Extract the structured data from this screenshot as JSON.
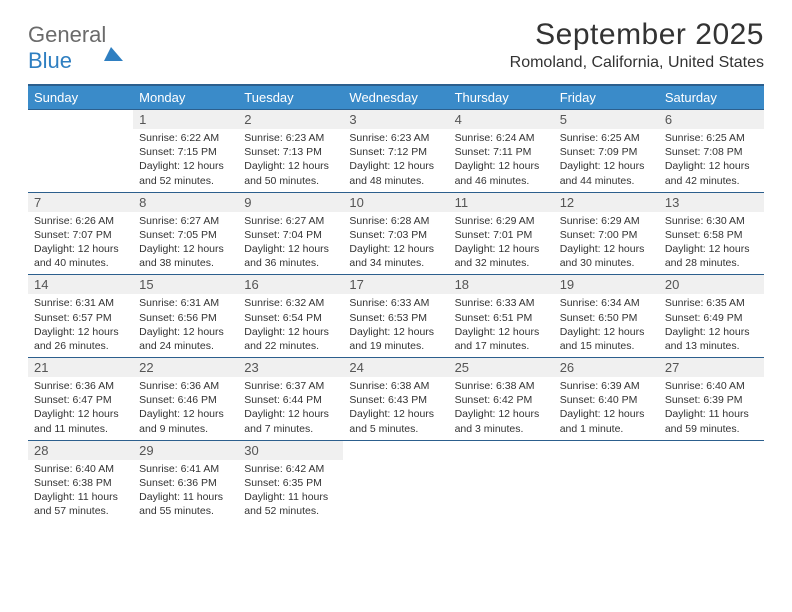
{
  "brand": {
    "name_part1": "General",
    "name_part2": "Blue"
  },
  "title": "September 2025",
  "location": "Romoland, California, United States",
  "colors": {
    "header_bg": "#3a8bc9",
    "header_border": "#2c5f8d",
    "daynum_bg": "#f0f0f0",
    "text": "#333333",
    "brand_gray": "#6b6b6b",
    "brand_blue": "#2f7fc1"
  },
  "weekdays": [
    "Sunday",
    "Monday",
    "Tuesday",
    "Wednesday",
    "Thursday",
    "Friday",
    "Saturday"
  ],
  "grid_start_weekday": 1,
  "days": [
    {
      "n": 1,
      "sunrise": "6:22 AM",
      "sunset": "7:15 PM",
      "daylight": "12 hours and 52 minutes."
    },
    {
      "n": 2,
      "sunrise": "6:23 AM",
      "sunset": "7:13 PM",
      "daylight": "12 hours and 50 minutes."
    },
    {
      "n": 3,
      "sunrise": "6:23 AM",
      "sunset": "7:12 PM",
      "daylight": "12 hours and 48 minutes."
    },
    {
      "n": 4,
      "sunrise": "6:24 AM",
      "sunset": "7:11 PM",
      "daylight": "12 hours and 46 minutes."
    },
    {
      "n": 5,
      "sunrise": "6:25 AM",
      "sunset": "7:09 PM",
      "daylight": "12 hours and 44 minutes."
    },
    {
      "n": 6,
      "sunrise": "6:25 AM",
      "sunset": "7:08 PM",
      "daylight": "12 hours and 42 minutes."
    },
    {
      "n": 7,
      "sunrise": "6:26 AM",
      "sunset": "7:07 PM",
      "daylight": "12 hours and 40 minutes."
    },
    {
      "n": 8,
      "sunrise": "6:27 AM",
      "sunset": "7:05 PM",
      "daylight": "12 hours and 38 minutes."
    },
    {
      "n": 9,
      "sunrise": "6:27 AM",
      "sunset": "7:04 PM",
      "daylight": "12 hours and 36 minutes."
    },
    {
      "n": 10,
      "sunrise": "6:28 AM",
      "sunset": "7:03 PM",
      "daylight": "12 hours and 34 minutes."
    },
    {
      "n": 11,
      "sunrise": "6:29 AM",
      "sunset": "7:01 PM",
      "daylight": "12 hours and 32 minutes."
    },
    {
      "n": 12,
      "sunrise": "6:29 AM",
      "sunset": "7:00 PM",
      "daylight": "12 hours and 30 minutes."
    },
    {
      "n": 13,
      "sunrise": "6:30 AM",
      "sunset": "6:58 PM",
      "daylight": "12 hours and 28 minutes."
    },
    {
      "n": 14,
      "sunrise": "6:31 AM",
      "sunset": "6:57 PM",
      "daylight": "12 hours and 26 minutes."
    },
    {
      "n": 15,
      "sunrise": "6:31 AM",
      "sunset": "6:56 PM",
      "daylight": "12 hours and 24 minutes."
    },
    {
      "n": 16,
      "sunrise": "6:32 AM",
      "sunset": "6:54 PM",
      "daylight": "12 hours and 22 minutes."
    },
    {
      "n": 17,
      "sunrise": "6:33 AM",
      "sunset": "6:53 PM",
      "daylight": "12 hours and 19 minutes."
    },
    {
      "n": 18,
      "sunrise": "6:33 AM",
      "sunset": "6:51 PM",
      "daylight": "12 hours and 17 minutes."
    },
    {
      "n": 19,
      "sunrise": "6:34 AM",
      "sunset": "6:50 PM",
      "daylight": "12 hours and 15 minutes."
    },
    {
      "n": 20,
      "sunrise": "6:35 AM",
      "sunset": "6:49 PM",
      "daylight": "12 hours and 13 minutes."
    },
    {
      "n": 21,
      "sunrise": "6:36 AM",
      "sunset": "6:47 PM",
      "daylight": "12 hours and 11 minutes."
    },
    {
      "n": 22,
      "sunrise": "6:36 AM",
      "sunset": "6:46 PM",
      "daylight": "12 hours and 9 minutes."
    },
    {
      "n": 23,
      "sunrise": "6:37 AM",
      "sunset": "6:44 PM",
      "daylight": "12 hours and 7 minutes."
    },
    {
      "n": 24,
      "sunrise": "6:38 AM",
      "sunset": "6:43 PM",
      "daylight": "12 hours and 5 minutes."
    },
    {
      "n": 25,
      "sunrise": "6:38 AM",
      "sunset": "6:42 PM",
      "daylight": "12 hours and 3 minutes."
    },
    {
      "n": 26,
      "sunrise": "6:39 AM",
      "sunset": "6:40 PM",
      "daylight": "12 hours and 1 minute."
    },
    {
      "n": 27,
      "sunrise": "6:40 AM",
      "sunset": "6:39 PM",
      "daylight": "11 hours and 59 minutes."
    },
    {
      "n": 28,
      "sunrise": "6:40 AM",
      "sunset": "6:38 PM",
      "daylight": "11 hours and 57 minutes."
    },
    {
      "n": 29,
      "sunrise": "6:41 AM",
      "sunset": "6:36 PM",
      "daylight": "11 hours and 55 minutes."
    },
    {
      "n": 30,
      "sunrise": "6:42 AM",
      "sunset": "6:35 PM",
      "daylight": "11 hours and 52 minutes."
    }
  ],
  "labels": {
    "sunrise": "Sunrise:",
    "sunset": "Sunset:",
    "daylight": "Daylight:"
  }
}
